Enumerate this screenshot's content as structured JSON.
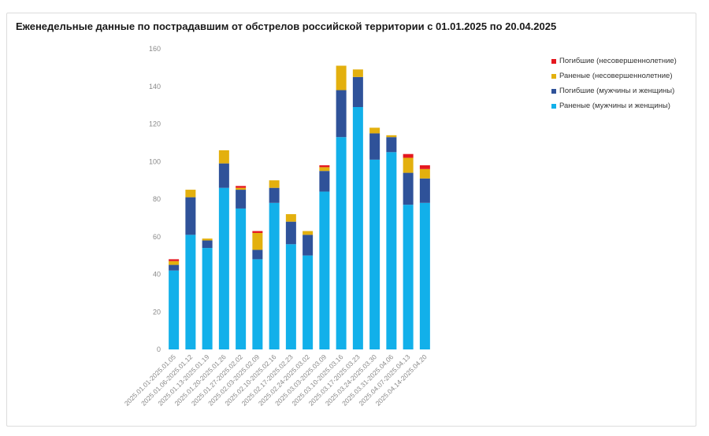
{
  "chart_data": {
    "type": "bar",
    "stacked": true,
    "title": "Еженедельные данные по пострадавшим от обстрелов российской территории с 01.01.2025 по 20.04.2025",
    "xlabel": "",
    "ylabel": "",
    "ylim": [
      0,
      160
    ],
    "yticks": [
      0,
      20,
      40,
      60,
      80,
      100,
      120,
      140,
      160
    ],
    "grid": false,
    "legend_position": "top-right",
    "categories": [
      "2025.01.01-2025.01.05",
      "2025.01.06-2025.01.12",
      "2025.01.13-2025.01.19",
      "2025.01.20-2025.01.26",
      "2025.01.27-2025.02.02",
      "2025.02.03-2025.02.09",
      "2025.02.10-2025.02.16",
      "2025.02.17-2025.02.23",
      "2025.02.24-2025.03.02",
      "2025.03.03-2025.03.09",
      "2025.03.10-2025.03.16",
      "2025.03.17-2025.03.23",
      "2025.03.24-2025.03.30",
      "2025.03.31-2025.04.06",
      "2025.04.07-2025.04.13",
      "2025.04.14-2025.04.20"
    ],
    "series": [
      {
        "name": "Раненые (мужчины и женщины)",
        "color": "#12b0ea",
        "values": [
          42,
          61,
          54,
          86,
          75,
          48,
          78,
          56,
          50,
          84,
          113,
          129,
          101,
          105,
          77,
          78
        ]
      },
      {
        "name": "Погибшие (мужчины и женщины)",
        "color": "#2f5299",
        "values": [
          3,
          20,
          4,
          13,
          10,
          5,
          8,
          12,
          11,
          11,
          25,
          16,
          14,
          8,
          17,
          13
        ]
      },
      {
        "name": "Раненые (несовершеннолетние)",
        "color": "#e3b00e",
        "values": [
          2,
          4,
          1,
          7,
          1,
          9,
          4,
          4,
          2,
          2,
          13,
          4,
          3,
          1,
          8,
          5
        ]
      },
      {
        "name": "Погибшие (несовершеннолетние)",
        "color": "#e5181f",
        "values": [
          1,
          0,
          0,
          0,
          1,
          1,
          0,
          0,
          0,
          1,
          0,
          0,
          0,
          0,
          2,
          2
        ]
      }
    ],
    "legend_order": [
      3,
      2,
      1,
      0
    ]
  }
}
